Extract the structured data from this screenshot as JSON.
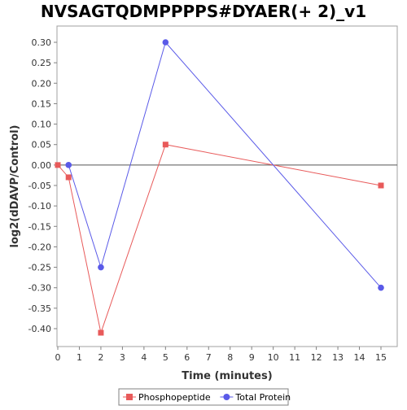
{
  "chart_data": {
    "type": "line",
    "title": "NVSAGTQDMPPPPS#DYAER(+ 2)_v1",
    "xlabel": "Time (minutes)",
    "ylabel": "log2(dDAVP/Control)",
    "xlim": [
      0,
      15.8
    ],
    "ylim": [
      -0.445,
      0.325
    ],
    "xticks": [
      0,
      1,
      2,
      3,
      4,
      5,
      6,
      7,
      8,
      9,
      10,
      11,
      12,
      13,
      14,
      15
    ],
    "yticks": [
      0.3,
      0.25,
      0.2,
      0.15,
      0.1,
      0.05,
      0.0,
      -0.05,
      -0.1,
      -0.15,
      -0.2,
      -0.25,
      -0.3,
      -0.35,
      -0.4
    ],
    "ytick_labels": [
      "0.30",
      "0.25",
      "0.20",
      "0.15",
      "0.10",
      "0.05",
      "0.00",
      "-0.05",
      "-0.10",
      "-0.15",
      "-0.20",
      "-0.25",
      "-0.30",
      "-0.35",
      "-0.40"
    ],
    "zero_line": true,
    "grid": false,
    "legend_position": "bottom",
    "series": [
      {
        "name": "Phosphopeptide",
        "color": "#e85a5a",
        "marker": "square",
        "x": [
          0,
          0.5,
          2,
          5,
          15
        ],
        "y": [
          0.0,
          -0.03,
          -0.41,
          0.05,
          -0.05
        ]
      },
      {
        "name": "Total Protein",
        "color": "#5a5ae8",
        "marker": "circle",
        "x": [
          0.5,
          2,
          5,
          15
        ],
        "y": [
          0.0,
          -0.25,
          0.3,
          -0.3
        ]
      }
    ]
  }
}
